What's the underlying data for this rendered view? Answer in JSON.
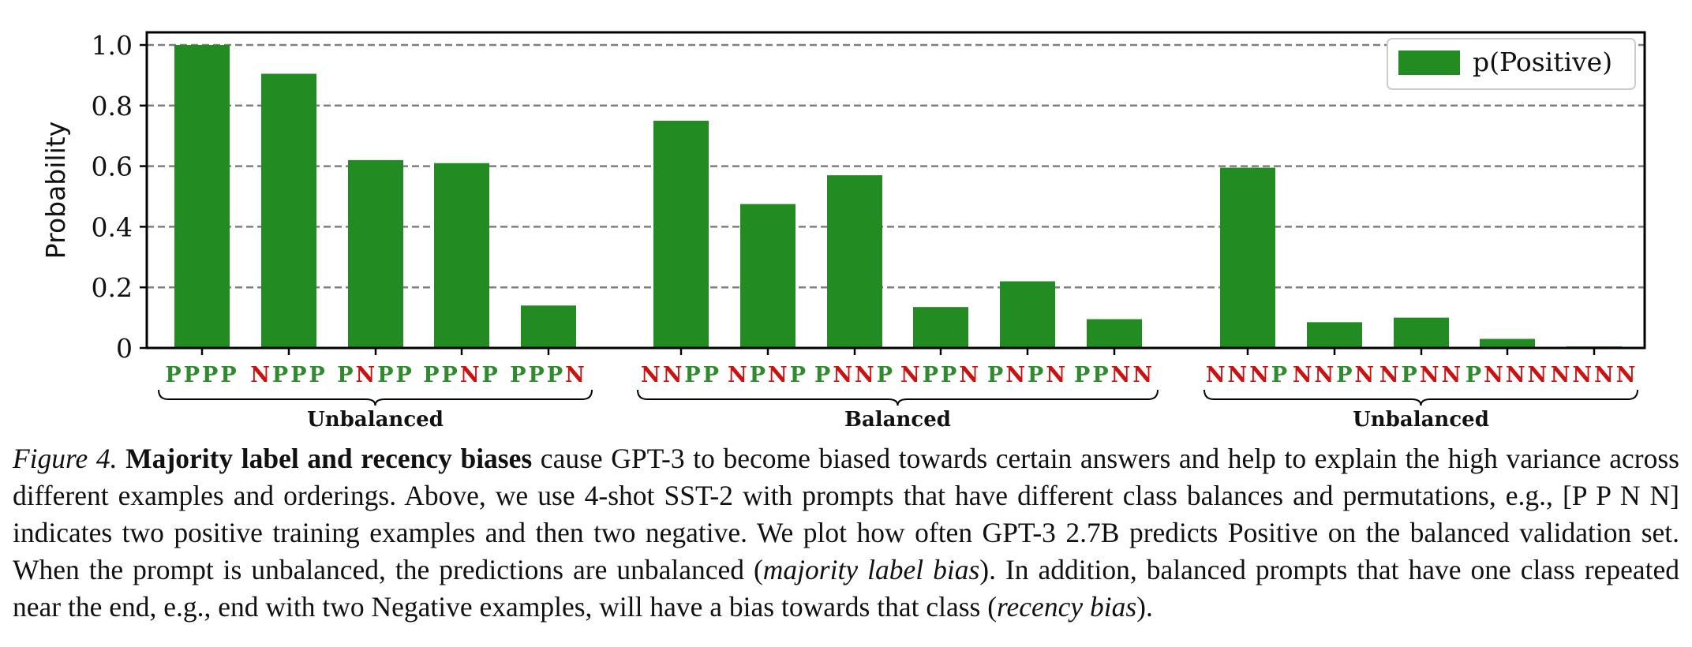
{
  "colors": {
    "bar": "#228b22",
    "positive_label": "#2e8b2e",
    "negative_label": "#cc1111",
    "grid": "#7f7f7f"
  },
  "chart_data": {
    "type": "bar",
    "ylabel": "Probability",
    "ylim": [
      0,
      1.0
    ],
    "yticks": [
      "0",
      "0.2",
      "0.4",
      "0.6",
      "0.8",
      "1.0"
    ],
    "grid": "horizontal dashed",
    "legend": {
      "placement": "top-right",
      "label": "p(Positive)"
    },
    "series": [
      {
        "name": "p(Positive)"
      }
    ],
    "categories": [
      "PPPP",
      "NPPP",
      "PNPP",
      "PPNP",
      "PPPN",
      "NNPP",
      "NPNP",
      "PNNP",
      "NPPN",
      "PNPN",
      "PPNN",
      "NNNP",
      "NNPN",
      "NPNN",
      "PNNN",
      "NNNN"
    ],
    "values": [
      1.0,
      0.905,
      0.62,
      0.61,
      0.14,
      0.75,
      0.475,
      0.57,
      0.135,
      0.22,
      0.095,
      0.595,
      0.085,
      0.1,
      0.03,
      0.005
    ],
    "groups": [
      {
        "label": "Unbalanced",
        "members": [
          0,
          1,
          2,
          3,
          4
        ]
      },
      {
        "label": "Balanced",
        "members": [
          5,
          6,
          7,
          8,
          9,
          10
        ]
      },
      {
        "label": "Unbalanced",
        "members": [
          11,
          12,
          13,
          14,
          15
        ]
      }
    ]
  },
  "caption": {
    "figure_label": "Figure 4.",
    "bold_lead": "Majority label and recency biases",
    "text_1": " cause GPT-3 to become biased towards certain answers and help to explain the high variance across different examples and orderings. Above, we use 4-shot SST-2 with prompts that have different class balances and permutations, e.g., [P P N N] indicates two positive training examples and then two negative. We plot how often GPT-3 2.7B predicts Positive on the balanced validation set. When the prompt is unbalanced, the predictions are unbalanced (",
    "italic_1": "majority label bias",
    "text_2": "). In addition, balanced prompts that have one class repeated near the end, e.g., end with two Negative examples, will have a bias towards that class (",
    "italic_2": "recency bias",
    "text_3": ")."
  }
}
